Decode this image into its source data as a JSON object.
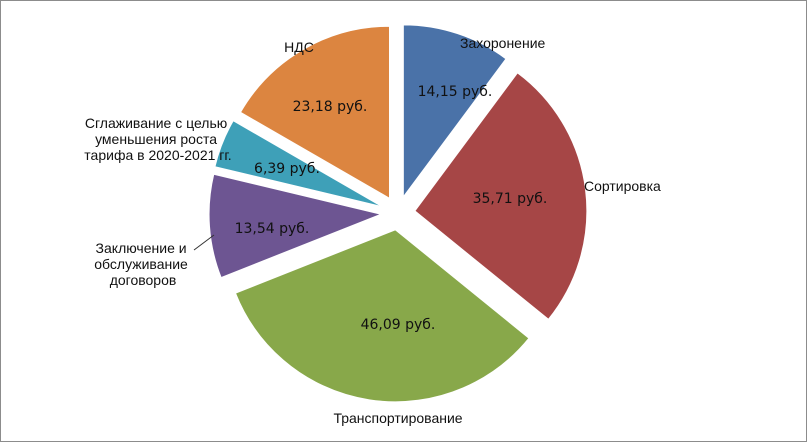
{
  "chart_data": {
    "type": "pie",
    "title": "",
    "slices": [
      {
        "label": "Захоронение",
        "value": 14.15,
        "value_label": "14,15 руб.",
        "color": "#4a72a8"
      },
      {
        "label": "Сортировка",
        "value": 35.71,
        "value_label": "35,71 руб.",
        "color": "#a64646"
      },
      {
        "label": "Транспортирование",
        "value": 46.09,
        "value_label": "46,09 руб.",
        "color": "#88a84a"
      },
      {
        "label": "Заключение и обслуживание договоров",
        "label_lines": [
          "Заключение и",
          "обслуживание",
          "договоров"
        ],
        "value": 13.54,
        "value_label": "13,54 руб.",
        "color": "#6d5592"
      },
      {
        "label": "Сглаживание с целью уменьшения роста тарифа в 2020-2021 гг.",
        "label_lines": [
          "Сглаживание с целью",
          "уменьшения роста",
          "тарифа в 2020-2021 гг."
        ],
        "value": 6.39,
        "value_label": "6,39 руб.",
        "color": "#3ea0b8"
      },
      {
        "label": "НДС",
        "value": 23.18,
        "value_label": "23,18 руб.",
        "color": "#dc8540"
      }
    ]
  }
}
